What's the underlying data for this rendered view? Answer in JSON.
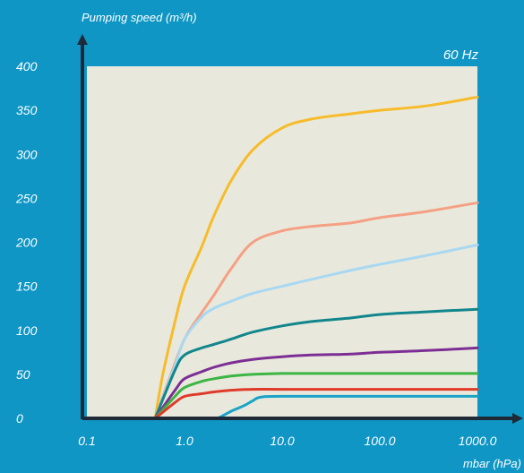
{
  "colors": {
    "background": "#0f96c5",
    "plot_background": "#e8e9dc",
    "axis": "#1f2a38",
    "text": "#ffffff"
  },
  "chart_data": {
    "type": "line",
    "title": "",
    "annotation": "60 Hz",
    "ylabel": "Pumping speed (m³/h)",
    "xlabel": "mbar (hPa)",
    "x_scale": "log",
    "xlim": [
      0.1,
      1000.0
    ],
    "ylim": [
      0,
      400
    ],
    "x_tick_labels": [
      "0.1",
      "1.0",
      "10.0",
      "100.0",
      "1000.0"
    ],
    "x_tick_values": [
      0.1,
      1.0,
      10.0,
      100.0,
      1000.0
    ],
    "y_tick_labels": [
      "0",
      "50",
      "100",
      "150",
      "200",
      "250",
      "300",
      "350",
      "400"
    ],
    "y_tick_values": [
      0,
      50,
      100,
      150,
      200,
      250,
      300,
      350,
      400
    ],
    "grid": false,
    "legend": "none",
    "series": [
      {
        "color": "#f7bb2b",
        "x": [
          0.5,
          0.6,
          0.8,
          1.0,
          1.5,
          2.0,
          3.0,
          5.0,
          10.0,
          20.0,
          50.0,
          100.0,
          300.0,
          1000.0
        ],
        "y": [
          0,
          50,
          110,
          150,
          195,
          230,
          270,
          305,
          330,
          340,
          346,
          350,
          355,
          365
        ]
      },
      {
        "color": "#f5a084",
        "x": [
          0.5,
          0.7,
          1.0,
          1.5,
          2.0,
          3.0,
          5.0,
          10.0,
          20.0,
          50.0,
          100.0,
          300.0,
          1000.0
        ],
        "y": [
          0,
          45,
          90,
          120,
          140,
          170,
          200,
          213,
          218,
          222,
          228,
          235,
          245
        ]
      },
      {
        "color": "#a9d8f2",
        "x": [
          0.5,
          0.8,
          1.0,
          1.5,
          2.0,
          3.0,
          5.0,
          10.0,
          20.0,
          50.0,
          100.0,
          300.0,
          1000.0
        ],
        "y": [
          0,
          60,
          90,
          115,
          125,
          133,
          142,
          150,
          158,
          168,
          175,
          185,
          197
        ]
      },
      {
        "color": "#11868c",
        "x": [
          0.5,
          0.8,
          1.0,
          1.5,
          2.0,
          3.0,
          5.0,
          10.0,
          20.0,
          50.0,
          100.0,
          300.0,
          1000.0
        ],
        "y": [
          0,
          55,
          72,
          80,
          84,
          90,
          98,
          105,
          110,
          114,
          118,
          121,
          124
        ]
      },
      {
        "color": "#7d2e95",
        "x": [
          0.5,
          0.8,
          1.0,
          1.5,
          2.0,
          3.0,
          5.0,
          10.0,
          20.0,
          50.0,
          100.0,
          300.0,
          1000.0
        ],
        "y": [
          0,
          32,
          45,
          53,
          58,
          63,
          67,
          70,
          72,
          73,
          75,
          77,
          80
        ]
      },
      {
        "color": "#3cb544",
        "x": [
          0.5,
          0.8,
          1.0,
          1.5,
          2.0,
          3.0,
          5.0,
          10.0,
          20.0,
          50.0,
          100.0,
          300.0,
          1000.0
        ],
        "y": [
          0,
          25,
          35,
          42,
          45,
          48,
          50,
          51,
          51,
          51,
          51,
          51,
          51
        ]
      },
      {
        "color": "#e03a2a",
        "x": [
          0.5,
          0.8,
          1.0,
          1.5,
          2.0,
          3.0,
          5.0,
          10.0,
          100.0,
          1000.0
        ],
        "y": [
          0,
          18,
          25,
          28,
          30,
          32,
          33,
          33,
          33,
          33
        ]
      },
      {
        "color": "#1aa3c7",
        "x": [
          2.2,
          3.0,
          4.0,
          5.0,
          6.0,
          10.0,
          100.0,
          1000.0
        ],
        "y": [
          0,
          8,
          14,
          20,
          24,
          25,
          25,
          25
        ]
      }
    ]
  }
}
